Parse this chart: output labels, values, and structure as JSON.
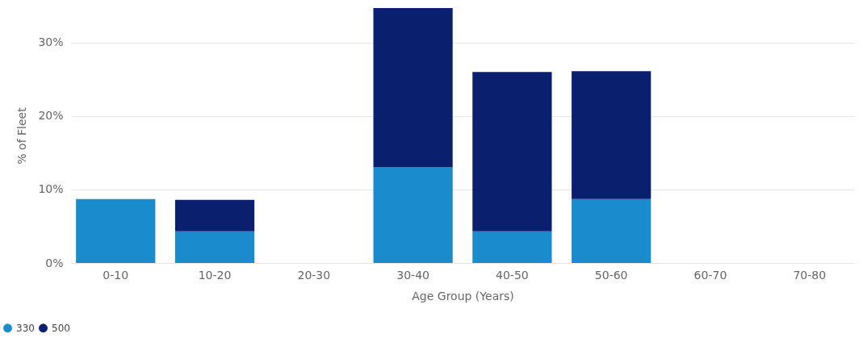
{
  "chart_data": {
    "type": "bar",
    "stacked": true,
    "xlabel": "Age Group (Years)",
    "ylabel": "% of Fleet",
    "categories": [
      "0-10",
      "10-20",
      "20-30",
      "30-40",
      "40-50",
      "50-60",
      "60-70",
      "70-80"
    ],
    "series": [
      {
        "name": "330",
        "color": "#1a8ccd",
        "values": [
          8.7,
          4.3,
          null,
          13,
          4.3,
          8.7,
          null,
          null
        ]
      },
      {
        "name": "500",
        "color": "#0b1f6f",
        "values": [
          null,
          4.3,
          null,
          21.7,
          21.7,
          17.4,
          null,
          null
        ]
      }
    ],
    "ylim": [
      0,
      34.7
    ],
    "yticks": [
      {
        "value": 0,
        "label": "0%"
      },
      {
        "value": 10,
        "label": "10%"
      },
      {
        "value": 20,
        "label": "20%"
      },
      {
        "value": 30,
        "label": "30%"
      }
    ],
    "grid": "y",
    "legend": "bottom left"
  }
}
